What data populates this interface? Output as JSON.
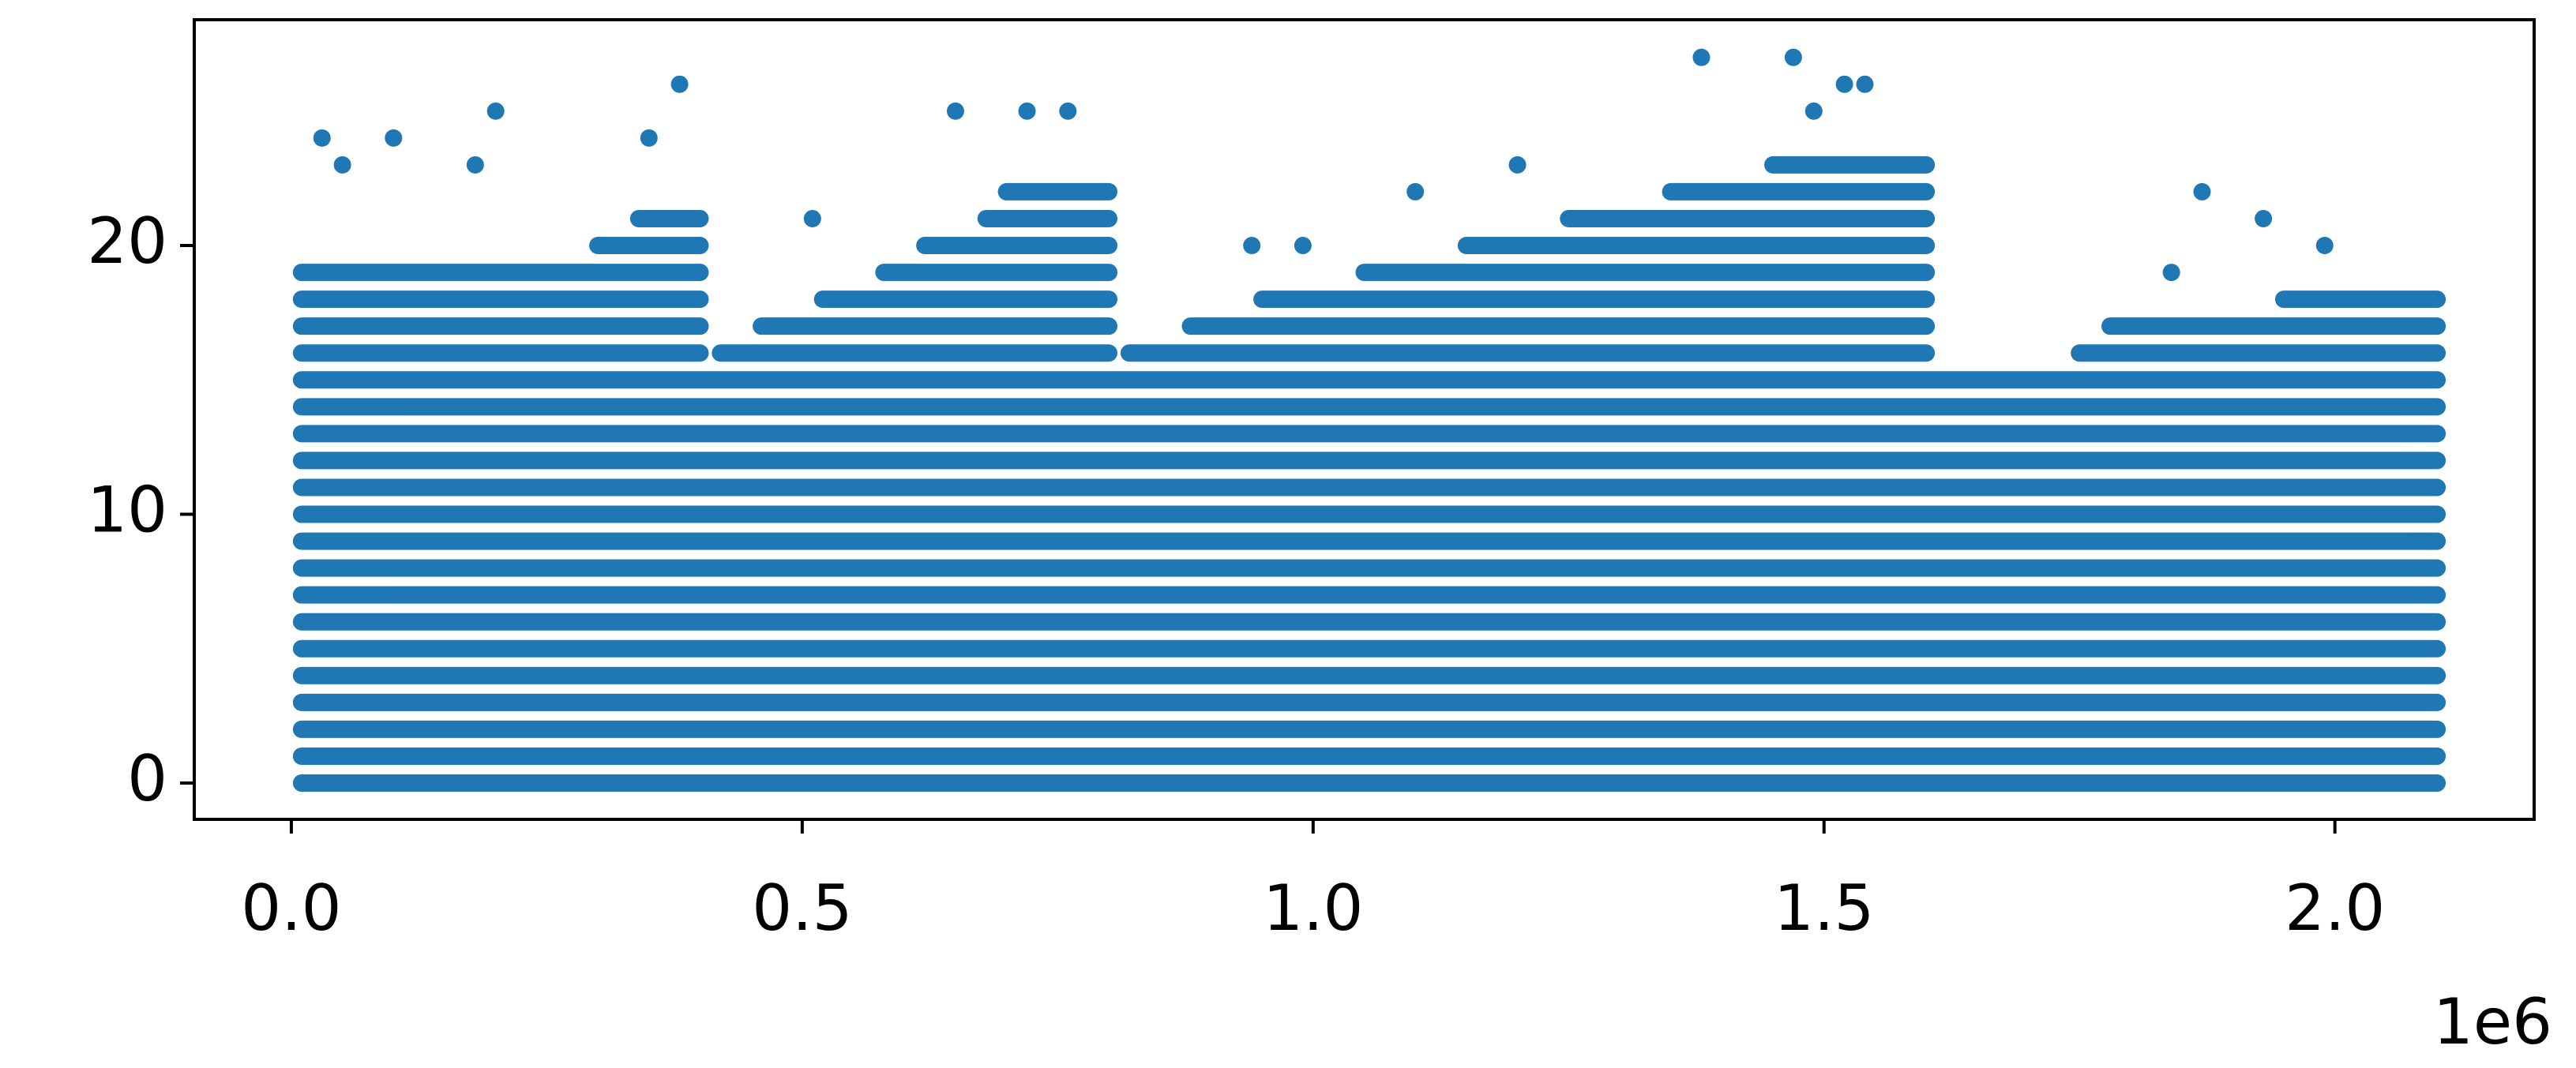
{
  "chart_data": {
    "type": "scatter",
    "color": "#1f77b4",
    "x_offset_label": "1e6",
    "xlim": [
      -95000,
      2195000
    ],
    "ylim": [
      -1.35,
      28.4
    ],
    "xticks": [
      {
        "value": 0,
        "label": "0.0"
      },
      {
        "value": 500000,
        "label": "0.5"
      },
      {
        "value": 1000000,
        "label": "1.0"
      },
      {
        "value": 1500000,
        "label": "1.5"
      },
      {
        "value": 2000000,
        "label": "2.0"
      }
    ],
    "yticks": [
      0,
      10,
      20
    ],
    "runs": {
      "y": [
        0,
        1,
        2,
        3,
        4,
        5,
        6,
        7,
        8,
        9,
        10,
        11,
        12,
        13,
        14,
        15,
        16,
        16,
        16,
        16,
        17,
        17,
        17,
        17,
        18,
        18,
        18,
        18,
        19,
        19,
        19,
        20,
        20,
        20,
        21,
        21,
        21,
        22,
        22,
        23
      ],
      "x_start": [
        10000,
        10000,
        10000,
        10000,
        10000,
        10000,
        10000,
        10000,
        10000,
        10000,
        10000,
        10000,
        10000,
        10000,
        10000,
        10000,
        10000,
        420000,
        820000,
        1750000,
        10000,
        460000,
        880000,
        1780000,
        10000,
        520000,
        950000,
        1950000,
        10000,
        580000,
        1050000,
        300000,
        620000,
        1150000,
        340000,
        680000,
        1250000,
        700000,
        1350000,
        1450000
      ],
      "x_end": [
        2100000,
        2100000,
        2100000,
        2100000,
        2100000,
        2100000,
        2100000,
        2100000,
        2100000,
        2100000,
        2100000,
        2100000,
        2100000,
        2100000,
        2100000,
        2100000,
        400000,
        800000,
        1600000,
        2100000,
        400000,
        800000,
        1600000,
        2100000,
        400000,
        800000,
        1600000,
        2100000,
        400000,
        800000,
        1600000,
        400000,
        800000,
        1600000,
        400000,
        800000,
        1600000,
        800000,
        1600000,
        1600000
      ]
    },
    "points": {
      "x": [
        380000,
        200000,
        1380000,
        1470000,
        1520000,
        1540000,
        650000,
        720000,
        760000,
        1870000,
        1930000,
        30000,
        100000,
        350000,
        510000,
        940000,
        1100000,
        50000,
        180000,
        1200000,
        1990000,
        1840000,
        990000,
        1490000
      ],
      "y": [
        26,
        25,
        27,
        27,
        26,
        26,
        25,
        25,
        25,
        22,
        21,
        24,
        24,
        24,
        21,
        20,
        22,
        23,
        23,
        23,
        20,
        19,
        20,
        25
      ]
    }
  }
}
